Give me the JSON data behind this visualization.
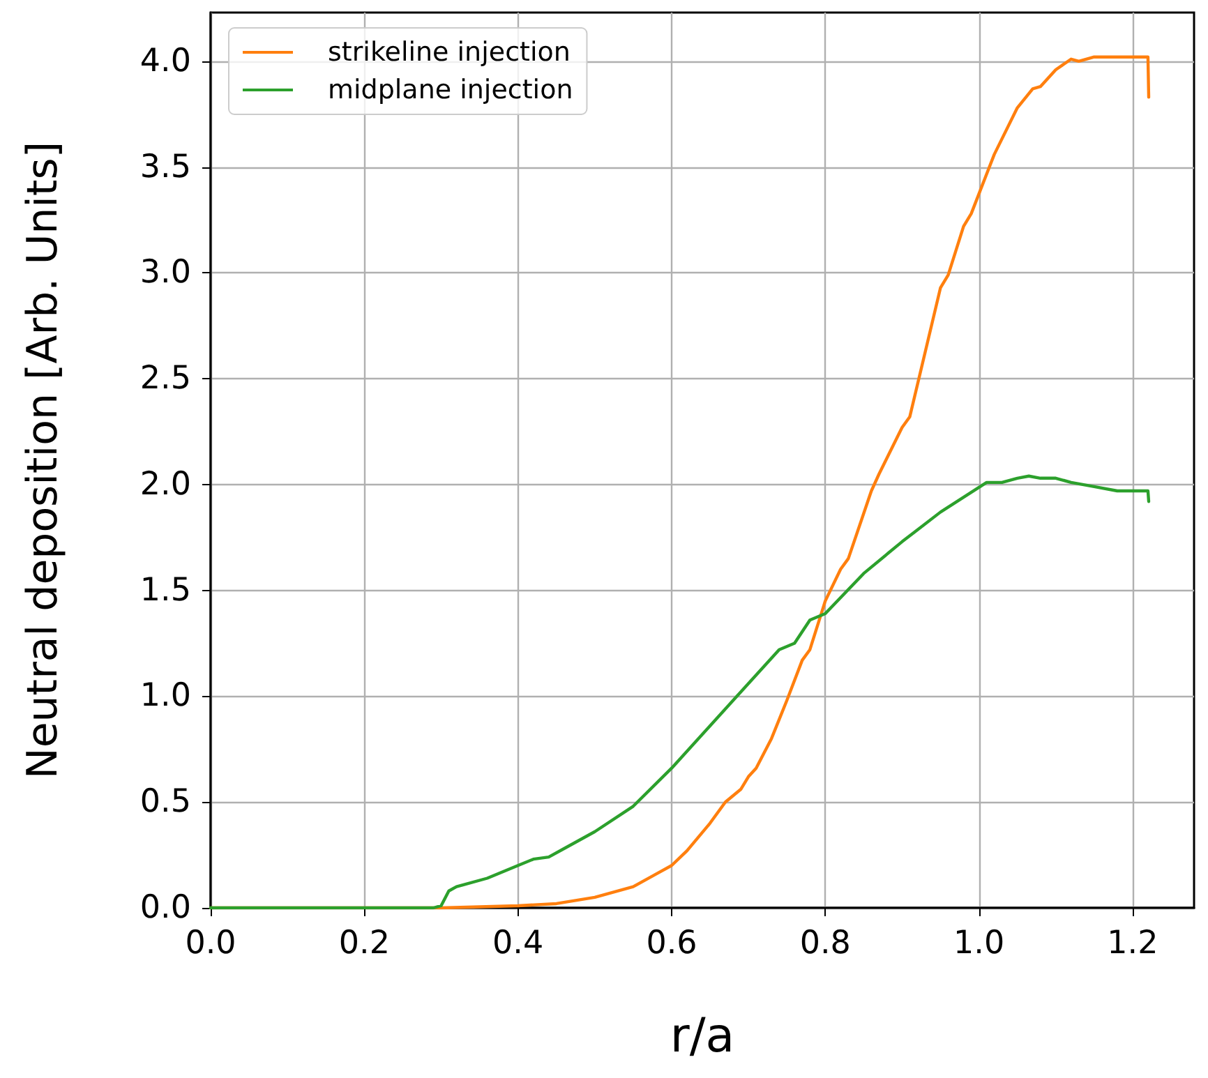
{
  "chart_data": {
    "type": "line",
    "xlabel": "r/a",
    "ylabel": "Neutral deposition [Arb. Units]",
    "xlim": [
      0,
      1.28
    ],
    "xticks": [
      {
        "value": 0,
        "label": "0.0"
      },
      {
        "value": 0.2,
        "label": "0.2"
      },
      {
        "value": 0.4,
        "label": "0.4"
      },
      {
        "value": 0.6,
        "label": "0.6"
      },
      {
        "value": 0.8,
        "label": "0.8"
      },
      {
        "value": 1,
        "label": "1.0"
      },
      {
        "value": 1.2,
        "label": "1.2"
      }
    ],
    "ylim": [
      0,
      4.23
    ],
    "yticks": [
      {
        "value": 0,
        "label": "0.0"
      },
      {
        "value": 0.5,
        "label": "0.5"
      },
      {
        "value": 1,
        "label": "1.0"
      },
      {
        "value": 1.5,
        "label": "1.5"
      },
      {
        "value": 2,
        "label": "2.0"
      },
      {
        "value": 2.5,
        "label": "2.5"
      },
      {
        "value": 3,
        "label": "3.0"
      },
      {
        "value": 3.5,
        "label": "3.5"
      },
      {
        "value": 4,
        "label": "4.0"
      }
    ],
    "grid": true,
    "legend": "top left",
    "marker": "none",
    "line_style": "solid",
    "series": [
      {
        "name": "strikeline injection",
        "color": "#ff7f0e",
        "x": [
          0,
          0.3,
          0.4,
          0.45,
          0.5,
          0.55,
          0.58,
          0.6,
          0.62,
          0.65,
          0.67,
          0.69,
          0.7,
          0.71,
          0.73,
          0.75,
          0.77,
          0.78,
          0.8,
          0.82,
          0.83,
          0.86,
          0.87,
          0.9,
          0.91,
          0.95,
          0.96,
          0.98,
          0.99,
          1.02,
          1.05,
          1.07,
          1.08,
          1.1,
          1.12,
          1.13,
          1.15,
          1.2,
          1.22,
          1.221
        ],
        "values": [
          0,
          0,
          0.01,
          0.02,
          0.05,
          0.1,
          0.16,
          0.2,
          0.27,
          0.4,
          0.5,
          0.56,
          0.62,
          0.66,
          0.8,
          0.98,
          1.17,
          1.22,
          1.45,
          1.6,
          1.65,
          1.97,
          2.05,
          2.27,
          2.32,
          2.93,
          2.99,
          3.22,
          3.28,
          3.56,
          3.78,
          3.87,
          3.88,
          3.96,
          4.01,
          4.0,
          4.02,
          4.02,
          4.02,
          3.83
        ]
      },
      {
        "name": "midplane injection",
        "color": "#2ca02c",
        "x": [
          0,
          0.29,
          0.3,
          0.31,
          0.32,
          0.36,
          0.4,
          0.42,
          0.44,
          0.46,
          0.5,
          0.55,
          0.6,
          0.65,
          0.7,
          0.74,
          0.76,
          0.78,
          0.8,
          0.85,
          0.9,
          0.95,
          1.01,
          1.03,
          1.05,
          1.065,
          1.08,
          1.1,
          1.12,
          1.15,
          1.18,
          1.22,
          1.221
        ],
        "values": [
          0,
          0,
          0.01,
          0.08,
          0.1,
          0.14,
          0.2,
          0.23,
          0.24,
          0.28,
          0.36,
          0.48,
          0.66,
          0.86,
          1.06,
          1.22,
          1.25,
          1.36,
          1.39,
          1.58,
          1.73,
          1.87,
          2.01,
          2.01,
          2.03,
          2.04,
          2.03,
          2.03,
          2.01,
          1.99,
          1.97,
          1.97,
          1.92
        ]
      }
    ]
  }
}
